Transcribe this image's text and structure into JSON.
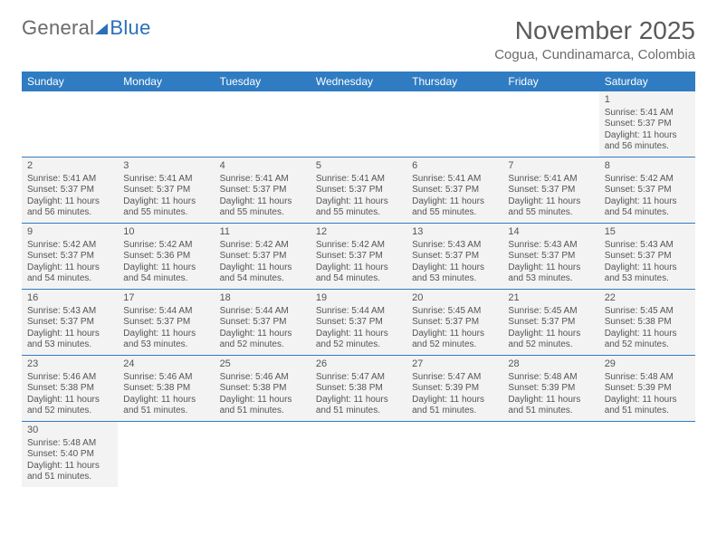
{
  "logo": {
    "part1": "General",
    "part2": "Blue"
  },
  "title": "November 2025",
  "location": "Cogua, Cundinamarca, Colombia",
  "labels": {
    "sunrise": "Sunrise:",
    "sunset": "Sunset:",
    "daylight": "Daylight:"
  },
  "day_headers": [
    "Sunday",
    "Monday",
    "Tuesday",
    "Wednesday",
    "Thursday",
    "Friday",
    "Saturday"
  ],
  "colors": {
    "header_bg": "#2f7cc2",
    "header_fg": "#ffffff",
    "cell_bg": "#f3f3f3",
    "rule": "#2f7cc2",
    "logo_blue": "#2970b8"
  },
  "weeks": [
    [
      null,
      null,
      null,
      null,
      null,
      null,
      {
        "n": "1",
        "sr": "5:41 AM",
        "ss": "5:37 PM",
        "dl": "11 hours and 56 minutes."
      }
    ],
    [
      {
        "n": "2",
        "sr": "5:41 AM",
        "ss": "5:37 PM",
        "dl": "11 hours and 56 minutes."
      },
      {
        "n": "3",
        "sr": "5:41 AM",
        "ss": "5:37 PM",
        "dl": "11 hours and 55 minutes."
      },
      {
        "n": "4",
        "sr": "5:41 AM",
        "ss": "5:37 PM",
        "dl": "11 hours and 55 minutes."
      },
      {
        "n": "5",
        "sr": "5:41 AM",
        "ss": "5:37 PM",
        "dl": "11 hours and 55 minutes."
      },
      {
        "n": "6",
        "sr": "5:41 AM",
        "ss": "5:37 PM",
        "dl": "11 hours and 55 minutes."
      },
      {
        "n": "7",
        "sr": "5:41 AM",
        "ss": "5:37 PM",
        "dl": "11 hours and 55 minutes."
      },
      {
        "n": "8",
        "sr": "5:42 AM",
        "ss": "5:37 PM",
        "dl": "11 hours and 54 minutes."
      }
    ],
    [
      {
        "n": "9",
        "sr": "5:42 AM",
        "ss": "5:37 PM",
        "dl": "11 hours and 54 minutes."
      },
      {
        "n": "10",
        "sr": "5:42 AM",
        "ss": "5:36 PM",
        "dl": "11 hours and 54 minutes."
      },
      {
        "n": "11",
        "sr": "5:42 AM",
        "ss": "5:37 PM",
        "dl": "11 hours and 54 minutes."
      },
      {
        "n": "12",
        "sr": "5:42 AM",
        "ss": "5:37 PM",
        "dl": "11 hours and 54 minutes."
      },
      {
        "n": "13",
        "sr": "5:43 AM",
        "ss": "5:37 PM",
        "dl": "11 hours and 53 minutes."
      },
      {
        "n": "14",
        "sr": "5:43 AM",
        "ss": "5:37 PM",
        "dl": "11 hours and 53 minutes."
      },
      {
        "n": "15",
        "sr": "5:43 AM",
        "ss": "5:37 PM",
        "dl": "11 hours and 53 minutes."
      }
    ],
    [
      {
        "n": "16",
        "sr": "5:43 AM",
        "ss": "5:37 PM",
        "dl": "11 hours and 53 minutes."
      },
      {
        "n": "17",
        "sr": "5:44 AM",
        "ss": "5:37 PM",
        "dl": "11 hours and 53 minutes."
      },
      {
        "n": "18",
        "sr": "5:44 AM",
        "ss": "5:37 PM",
        "dl": "11 hours and 52 minutes."
      },
      {
        "n": "19",
        "sr": "5:44 AM",
        "ss": "5:37 PM",
        "dl": "11 hours and 52 minutes."
      },
      {
        "n": "20",
        "sr": "5:45 AM",
        "ss": "5:37 PM",
        "dl": "11 hours and 52 minutes."
      },
      {
        "n": "21",
        "sr": "5:45 AM",
        "ss": "5:37 PM",
        "dl": "11 hours and 52 minutes."
      },
      {
        "n": "22",
        "sr": "5:45 AM",
        "ss": "5:38 PM",
        "dl": "11 hours and 52 minutes."
      }
    ],
    [
      {
        "n": "23",
        "sr": "5:46 AM",
        "ss": "5:38 PM",
        "dl": "11 hours and 52 minutes."
      },
      {
        "n": "24",
        "sr": "5:46 AM",
        "ss": "5:38 PM",
        "dl": "11 hours and 51 minutes."
      },
      {
        "n": "25",
        "sr": "5:46 AM",
        "ss": "5:38 PM",
        "dl": "11 hours and 51 minutes."
      },
      {
        "n": "26",
        "sr": "5:47 AM",
        "ss": "5:38 PM",
        "dl": "11 hours and 51 minutes."
      },
      {
        "n": "27",
        "sr": "5:47 AM",
        "ss": "5:39 PM",
        "dl": "11 hours and 51 minutes."
      },
      {
        "n": "28",
        "sr": "5:48 AM",
        "ss": "5:39 PM",
        "dl": "11 hours and 51 minutes."
      },
      {
        "n": "29",
        "sr": "5:48 AM",
        "ss": "5:39 PM",
        "dl": "11 hours and 51 minutes."
      }
    ],
    [
      {
        "n": "30",
        "sr": "5:48 AM",
        "ss": "5:40 PM",
        "dl": "11 hours and 51 minutes."
      },
      null,
      null,
      null,
      null,
      null,
      null
    ]
  ]
}
